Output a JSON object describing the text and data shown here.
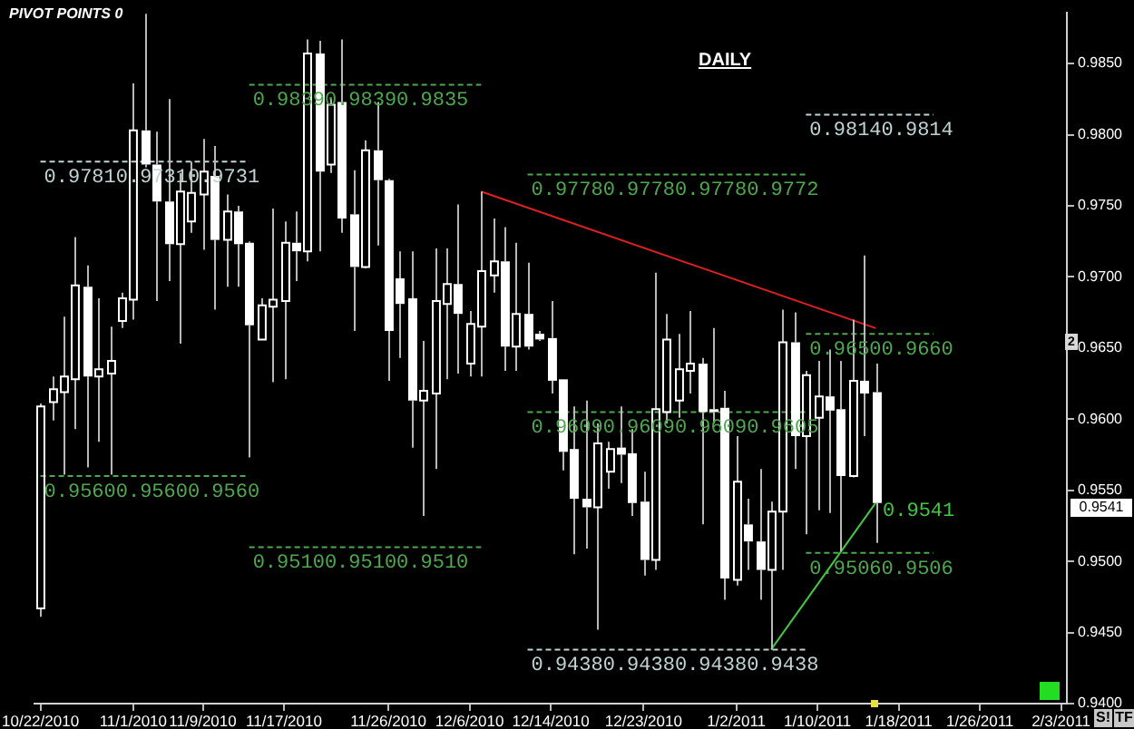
{
  "chart_data": {
    "type": "candlestick",
    "color": "#ffffff",
    "marker": "none",
    "grid": false,
    "legend": false,
    "annotations": [
      "PIVOT POINTS 0",
      "DAILY",
      "S!",
      "TF",
      "2",
      "0.9541"
    ],
    "categories": [
      "10/22/2010",
      null,
      null,
      null,
      null,
      null,
      null,
      null,
      "11/1/2010",
      null,
      null,
      null,
      null,
      null,
      "11/9/2010",
      null,
      null,
      null,
      null,
      null,
      null,
      "11/17/2010",
      null,
      null,
      null,
      null,
      null,
      null,
      null,
      null,
      "11/26/2010",
      null,
      null,
      null,
      null,
      null,
      null,
      "12/6/2010",
      null,
      null,
      null,
      null,
      null,
      null,
      "12/14/2010",
      null,
      null,
      null,
      null,
      null,
      null,
      null,
      "12/23/2010",
      null,
      null,
      null,
      null,
      null,
      null,
      null,
      "1/2/2011",
      null,
      null,
      null,
      null,
      null,
      null,
      "1/10/2011",
      null,
      null,
      null,
      null,
      null,
      null,
      "1/18/2011",
      null,
      null,
      null,
      null,
      null,
      null,
      "1/26/2011",
      null,
      null,
      null,
      null,
      null,
      null,
      "2/3/2011"
    ],
    "ohlc": [
      [
        0.9467,
        0.9611,
        0.9461,
        0.9609
      ],
      [
        0.9612,
        0.963,
        0.9599,
        0.9621
      ],
      [
        0.9619,
        0.9672,
        0.9561,
        0.963
      ],
      [
        0.9628,
        0.9728,
        0.9593,
        0.9694
      ],
      [
        0.9693,
        0.9708,
        0.9566,
        0.963
      ],
      [
        0.963,
        0.9685,
        0.9584,
        0.9635
      ],
      [
        0.9632,
        0.9665,
        0.9561,
        0.9641
      ],
      [
        0.9669,
        0.9689,
        0.9664,
        0.9685
      ],
      [
        0.9684,
        0.9836,
        0.967,
        0.9803
      ],
      [
        0.9803,
        0.9885,
        0.9777,
        0.9779
      ],
      [
        0.9779,
        0.9802,
        0.9683,
        0.9753
      ],
      [
        0.9753,
        0.9825,
        0.9697,
        0.9723
      ],
      [
        0.9723,
        0.9773,
        0.9653,
        0.976
      ],
      [
        0.9739,
        0.9781,
        0.9731,
        0.9759
      ],
      [
        0.9758,
        0.9797,
        0.9719,
        0.9774
      ],
      [
        0.9771,
        0.9792,
        0.9677,
        0.9726
      ],
      [
        0.9726,
        0.9758,
        0.9693,
        0.9746
      ],
      [
        0.9746,
        0.975,
        0.9693,
        0.9723
      ],
      [
        0.9724,
        0.9725,
        0.9573,
        0.9666
      ],
      [
        0.9656,
        0.9685,
        0.9656,
        0.968
      ],
      [
        0.9679,
        0.9748,
        0.9626,
        0.9684
      ],
      [
        0.9683,
        0.9739,
        0.9628,
        0.9724
      ],
      [
        0.9724,
        0.9746,
        0.9697,
        0.9718
      ],
      [
        0.9718,
        0.9867,
        0.9711,
        0.9857
      ],
      [
        0.9857,
        0.9866,
        0.9718,
        0.9774
      ],
      [
        0.9779,
        0.9825,
        0.9773,
        0.9821
      ],
      [
        0.9823,
        0.9867,
        0.9731,
        0.9741
      ],
      [
        0.9744,
        0.9775,
        0.9662,
        0.9707
      ],
      [
        0.9707,
        0.9796,
        0.9706,
        0.9789
      ],
      [
        0.9789,
        0.9823,
        0.9722,
        0.9768
      ],
      [
        0.9768,
        0.9769,
        0.9627,
        0.9662
      ],
      [
        0.9699,
        0.9718,
        0.9643,
        0.9681
      ],
      [
        0.9685,
        0.9718,
        0.958,
        0.9613
      ],
      [
        0.9613,
        0.9655,
        0.9532,
        0.962
      ],
      [
        0.9618,
        0.972,
        0.9565,
        0.9683
      ],
      [
        0.9681,
        0.972,
        0.9628,
        0.9695
      ],
      [
        0.9695,
        0.9751,
        0.9632,
        0.9674
      ],
      [
        0.9639,
        0.9676,
        0.963,
        0.9667
      ],
      [
        0.9665,
        0.976,
        0.963,
        0.9704
      ],
      [
        0.9701,
        0.9741,
        0.9689,
        0.9711
      ],
      [
        0.9711,
        0.9735,
        0.9634,
        0.9651
      ],
      [
        0.9651,
        0.9724,
        0.9634,
        0.9674
      ],
      [
        0.9674,
        0.971,
        0.9649,
        0.9651
      ],
      [
        0.966,
        0.9662,
        0.9655,
        0.9656
      ],
      [
        0.9657,
        0.9683,
        0.9618,
        0.9627
      ],
      [
        0.9628,
        0.9628,
        0.9564,
        0.9577
      ],
      [
        0.9579,
        0.9609,
        0.9505,
        0.9544
      ],
      [
        0.9544,
        0.9613,
        0.9509,
        0.9538
      ],
      [
        0.9538,
        0.9597,
        0.9452,
        0.9583
      ],
      [
        0.9563,
        0.9584,
        0.9551,
        0.9579
      ],
      [
        0.958,
        0.9609,
        0.9555,
        0.9575
      ],
      [
        0.9576,
        0.9593,
        0.9532,
        0.9541
      ],
      [
        0.9542,
        0.9563,
        0.949,
        0.9501
      ],
      [
        0.9501,
        0.9703,
        0.9494,
        0.9607
      ],
      [
        0.9605,
        0.9674,
        0.9597,
        0.9656
      ],
      [
        0.9613,
        0.966,
        0.9601,
        0.9635
      ],
      [
        0.9634,
        0.9676,
        0.9618,
        0.9639
      ],
      [
        0.9639,
        0.9643,
        0.9526,
        0.9605
      ],
      [
        0.9607,
        0.9664,
        0.9597,
        0.9605
      ],
      [
        0.9608,
        0.962,
        0.9473,
        0.9488
      ],
      [
        0.9487,
        0.9588,
        0.9483,
        0.9556
      ],
      [
        0.9526,
        0.9544,
        0.9494,
        0.9514
      ],
      [
        0.9514,
        0.9565,
        0.9473,
        0.9494
      ],
      [
        0.9494,
        0.9542,
        0.9438,
        0.9535
      ],
      [
        0.9535,
        0.9677,
        0.9494,
        0.9654
      ],
      [
        0.9654,
        0.9675,
        0.9565,
        0.9588
      ],
      [
        0.9588,
        0.9634,
        0.9519,
        0.9631
      ],
      [
        0.9601,
        0.9641,
        0.9536,
        0.9616
      ],
      [
        0.9616,
        0.9649,
        0.9534,
        0.9606
      ],
      [
        0.9607,
        0.9641,
        0.9507,
        0.956
      ],
      [
        0.956,
        0.967,
        0.9559,
        0.9627
      ],
      [
        0.9627,
        0.9715,
        0.9588,
        0.9618
      ],
      [
        0.9619,
        0.9639,
        0.9513,
        0.9541
      ],
      null,
      null,
      null,
      null,
      null,
      null,
      null,
      null,
      null,
      null,
      null,
      null,
      null,
      null,
      null,
      null
    ],
    "series": [
      {
        "type": "line",
        "name": "0.97810.97310.9731",
        "color": "#c0d4d4",
        "line_style": "dashed",
        "values": [
          0.9781,
          null,
          null,
          null,
          null,
          null,
          null,
          null,
          null,
          null,
          null,
          null,
          null,
          null,
          null,
          null,
          null,
          null,
          0.9781,
          null,
          null,
          null,
          null,
          null,
          null,
          null,
          null,
          null,
          null,
          null,
          null,
          null,
          null,
          null,
          null,
          null,
          null,
          null,
          null,
          null,
          null,
          null,
          null,
          null,
          null,
          null,
          null,
          null,
          null,
          null,
          null,
          null,
          null,
          null,
          null,
          null,
          null,
          null,
          null,
          null,
          null,
          null,
          null,
          null,
          null,
          null,
          null,
          null,
          null,
          null,
          null,
          null,
          null,
          null,
          null,
          null,
          null,
          null,
          null,
          null,
          null,
          null,
          null,
          null,
          null,
          null,
          null,
          null,
          null
        ]
      },
      {
        "type": "line",
        "name": "0.98390.98390.9835",
        "color": "#4ea84e",
        "line_style": "dashed",
        "values": [
          null,
          null,
          null,
          null,
          null,
          null,
          null,
          null,
          null,
          null,
          null,
          null,
          null,
          null,
          null,
          null,
          null,
          null,
          0.9835,
          null,
          null,
          null,
          null,
          null,
          null,
          null,
          null,
          null,
          null,
          null,
          null,
          null,
          null,
          null,
          null,
          null,
          null,
          null,
          0.9835,
          null,
          null,
          null,
          null,
          null,
          null,
          null,
          null,
          null,
          null,
          null,
          null,
          null,
          null,
          null,
          null,
          null,
          null,
          null,
          null,
          null,
          null,
          null,
          null,
          null,
          null,
          null,
          null,
          null,
          null,
          null,
          null,
          null,
          null,
          null,
          null,
          null,
          null,
          null,
          null,
          null,
          null,
          null,
          null,
          null,
          null,
          null,
          null,
          null,
          null
        ]
      },
      {
        "type": "line",
        "name": "0.95600.95600.9560",
        "color": "#4ea84e",
        "line_style": "dashed",
        "values": [
          0.956,
          null,
          null,
          null,
          null,
          null,
          null,
          null,
          null,
          null,
          null,
          null,
          null,
          null,
          null,
          null,
          null,
          null,
          0.956,
          null,
          null,
          null,
          null,
          null,
          null,
          null,
          null,
          null,
          null,
          null,
          null,
          null,
          null,
          null,
          null,
          null,
          null,
          null,
          null,
          null,
          null,
          null,
          null,
          null,
          null,
          null,
          null,
          null,
          null,
          null,
          null,
          null,
          null,
          null,
          null,
          null,
          null,
          null,
          null,
          null,
          null,
          null,
          null,
          null,
          null,
          null,
          null,
          null,
          null,
          null,
          null,
          null,
          null,
          null,
          null,
          null,
          null,
          null,
          null,
          null,
          null,
          null,
          null,
          null,
          null,
          null,
          null,
          null,
          null
        ]
      },
      {
        "type": "line",
        "name": "0.95100.95100.9510",
        "color": "#4ea84e",
        "line_style": "dashed",
        "values": [
          null,
          null,
          null,
          null,
          null,
          null,
          null,
          null,
          null,
          null,
          null,
          null,
          null,
          null,
          null,
          null,
          null,
          null,
          0.951,
          null,
          null,
          null,
          null,
          null,
          null,
          null,
          null,
          null,
          null,
          null,
          null,
          null,
          null,
          null,
          null,
          null,
          null,
          null,
          0.951,
          null,
          null,
          null,
          null,
          null,
          null,
          null,
          null,
          null,
          null,
          null,
          null,
          null,
          null,
          null,
          null,
          null,
          null,
          null,
          null,
          null,
          null,
          null,
          null,
          null,
          null,
          null,
          null,
          null,
          null,
          null,
          null,
          null,
          null,
          null,
          null,
          null,
          null,
          null,
          null,
          null,
          null,
          null,
          null,
          null,
          null,
          null,
          null,
          null,
          null
        ]
      },
      {
        "type": "line",
        "name": "0.97780.97780.97780.9772",
        "color": "#4ea84e",
        "line_style": "dashed",
        "values": [
          null,
          null,
          null,
          null,
          null,
          null,
          null,
          null,
          null,
          null,
          null,
          null,
          null,
          null,
          null,
          null,
          null,
          null,
          null,
          null,
          null,
          null,
          null,
          null,
          null,
          null,
          null,
          null,
          null,
          null,
          null,
          null,
          null,
          null,
          null,
          null,
          null,
          null,
          null,
          null,
          null,
          null,
          0.9772,
          null,
          null,
          null,
          null,
          null,
          null,
          null,
          null,
          null,
          null,
          null,
          null,
          null,
          null,
          null,
          null,
          null,
          null,
          null,
          null,
          null,
          null,
          null,
          0.9772,
          null,
          null,
          null,
          null,
          null,
          null,
          null,
          null,
          null,
          null,
          null,
          null,
          null,
          null,
          null,
          null,
          null,
          null,
          null,
          null,
          null,
          null
        ]
      },
      {
        "type": "line",
        "name": "0.96090.96090.96090.9605",
        "color": "#4ea84e",
        "line_style": "dashed",
        "values": [
          null,
          null,
          null,
          null,
          null,
          null,
          null,
          null,
          null,
          null,
          null,
          null,
          null,
          null,
          null,
          null,
          null,
          null,
          null,
          null,
          null,
          null,
          null,
          null,
          null,
          null,
          null,
          null,
          null,
          null,
          null,
          null,
          null,
          null,
          null,
          null,
          null,
          null,
          null,
          null,
          null,
          null,
          0.9605,
          null,
          null,
          null,
          null,
          null,
          null,
          null,
          null,
          null,
          null,
          null,
          null,
          null,
          null,
          null,
          null,
          null,
          null,
          null,
          null,
          null,
          null,
          null,
          0.9605,
          null,
          null,
          null,
          null,
          null,
          null,
          null,
          null,
          null,
          null,
          null,
          null,
          null,
          null,
          null,
          null,
          null,
          null,
          null,
          null,
          null,
          null
        ]
      },
      {
        "type": "line",
        "name": "0.94380.94380.94380.9438",
        "color": "#c0d4d4",
        "line_style": "dashed",
        "values": [
          null,
          null,
          null,
          null,
          null,
          null,
          null,
          null,
          null,
          null,
          null,
          null,
          null,
          null,
          null,
          null,
          null,
          null,
          null,
          null,
          null,
          null,
          null,
          null,
          null,
          null,
          null,
          null,
          null,
          null,
          null,
          null,
          null,
          null,
          null,
          null,
          null,
          null,
          null,
          null,
          null,
          null,
          0.9438,
          null,
          null,
          null,
          null,
          null,
          null,
          null,
          null,
          null,
          null,
          null,
          null,
          null,
          null,
          null,
          null,
          null,
          null,
          null,
          null,
          null,
          null,
          null,
          0.9438,
          null,
          null,
          null,
          null,
          null,
          null,
          null,
          null,
          null,
          null,
          null,
          null,
          null,
          null,
          null,
          null,
          null,
          null,
          null,
          null,
          null,
          null
        ]
      },
      {
        "type": "line",
        "name": "0.98140.9814",
        "color": "#c0d4d4",
        "line_style": "dashed",
        "values": [
          null,
          null,
          null,
          null,
          null,
          null,
          null,
          null,
          null,
          null,
          null,
          null,
          null,
          null,
          null,
          null,
          null,
          null,
          null,
          null,
          null,
          null,
          null,
          null,
          null,
          null,
          null,
          null,
          null,
          null,
          null,
          null,
          null,
          null,
          null,
          null,
          null,
          null,
          null,
          null,
          null,
          null,
          null,
          null,
          null,
          null,
          null,
          null,
          null,
          null,
          null,
          null,
          null,
          null,
          null,
          null,
          null,
          null,
          null,
          null,
          null,
          null,
          null,
          null,
          null,
          null,
          0.9814,
          null,
          null,
          null,
          null,
          null,
          null,
          null,
          null,
          null,
          null,
          0.9814,
          null,
          null,
          null,
          null,
          null,
          null,
          null,
          null,
          null,
          null,
          null
        ]
      },
      {
        "type": "line",
        "name": "0.96500.9660",
        "color": "#4ea84e",
        "line_style": "dashed",
        "values": [
          null,
          null,
          null,
          null,
          null,
          null,
          null,
          null,
          null,
          null,
          null,
          null,
          null,
          null,
          null,
          null,
          null,
          null,
          null,
          null,
          null,
          null,
          null,
          null,
          null,
          null,
          null,
          null,
          null,
          null,
          null,
          null,
          null,
          null,
          null,
          null,
          null,
          null,
          null,
          null,
          null,
          null,
          null,
          null,
          null,
          null,
          null,
          null,
          null,
          null,
          null,
          null,
          null,
          null,
          null,
          null,
          null,
          null,
          null,
          null,
          null,
          null,
          null,
          null,
          null,
          null,
          0.966,
          null,
          null,
          null,
          null,
          null,
          null,
          null,
          null,
          null,
          null,
          0.966,
          null,
          null,
          null,
          null,
          null,
          null,
          null,
          null,
          null,
          null,
          null
        ]
      },
      {
        "type": "line",
        "name": "0.95060.9506",
        "color": "#4ea84e",
        "line_style": "dashed",
        "values": [
          null,
          null,
          null,
          null,
          null,
          null,
          null,
          null,
          null,
          null,
          null,
          null,
          null,
          null,
          null,
          null,
          null,
          null,
          null,
          null,
          null,
          null,
          null,
          null,
          null,
          null,
          null,
          null,
          null,
          null,
          null,
          null,
          null,
          null,
          null,
          null,
          null,
          null,
          null,
          null,
          null,
          null,
          null,
          null,
          null,
          null,
          null,
          null,
          null,
          null,
          null,
          null,
          null,
          null,
          null,
          null,
          null,
          null,
          null,
          null,
          null,
          null,
          null,
          null,
          null,
          null,
          0.9506,
          null,
          null,
          null,
          null,
          null,
          null,
          null,
          null,
          null,
          null,
          0.9506,
          null,
          null,
          null,
          null,
          null,
          null,
          null,
          null,
          null,
          null,
          null
        ]
      },
      {
        "type": "line",
        "color": "#e02020",
        "line_style": "solid",
        "values": [
          null,
          null,
          null,
          null,
          null,
          null,
          null,
          null,
          null,
          null,
          null,
          null,
          null,
          null,
          null,
          null,
          null,
          null,
          null,
          null,
          null,
          null,
          null,
          null,
          null,
          null,
          null,
          null,
          null,
          null,
          null,
          null,
          null,
          null,
          null,
          null,
          null,
          null,
          0.976,
          null,
          null,
          null,
          null,
          null,
          null,
          null,
          null,
          null,
          null,
          null,
          null,
          null,
          null,
          null,
          null,
          null,
          null,
          null,
          null,
          null,
          null,
          null,
          null,
          null,
          null,
          null,
          null,
          null,
          null,
          null,
          null,
          null,
          0.9664,
          null,
          null,
          null,
          null,
          null,
          null,
          null,
          null,
          null,
          null,
          null,
          null,
          null,
          null,
          null,
          null
        ]
      },
      {
        "type": "line",
        "name": "0.9541",
        "color": "#40c840",
        "line_style": "solid",
        "values": [
          null,
          null,
          null,
          null,
          null,
          null,
          null,
          null,
          null,
          null,
          null,
          null,
          null,
          null,
          null,
          null,
          null,
          null,
          null,
          null,
          null,
          null,
          null,
          null,
          null,
          null,
          null,
          null,
          null,
          null,
          null,
          null,
          null,
          null,
          null,
          null,
          null,
          null,
          null,
          null,
          null,
          null,
          null,
          null,
          null,
          null,
          null,
          null,
          null,
          null,
          null,
          null,
          null,
          null,
          null,
          null,
          null,
          null,
          null,
          null,
          null,
          null,
          null,
          0.9438,
          null,
          null,
          null,
          null,
          null,
          null,
          null,
          null,
          0.9541,
          null,
          null,
          null,
          null,
          null,
          null,
          null,
          null,
          null,
          null,
          null,
          null,
          null,
          null,
          null,
          null
        ]
      }
    ],
    "ylim": [
      0.94,
      0.9886
    ],
    "yticks": [
      {
        "value": 0.94,
        "label": "0.9400"
      },
      {
        "value": 0.945,
        "label": "0.9450"
      },
      {
        "value": 0.95,
        "label": "0.9500"
      },
      {
        "value": 0.955,
        "label": "0.9550"
      },
      {
        "value": 0.96,
        "label": "0.9600"
      },
      {
        "value": 0.965,
        "label": "0.9650"
      },
      {
        "value": 0.97,
        "label": "0.9700"
      },
      {
        "value": 0.975,
        "label": "0.9750"
      },
      {
        "value": 0.98,
        "label": "0.9800"
      },
      {
        "value": 0.985,
        "label": "0.9850"
      }
    ]
  }
}
